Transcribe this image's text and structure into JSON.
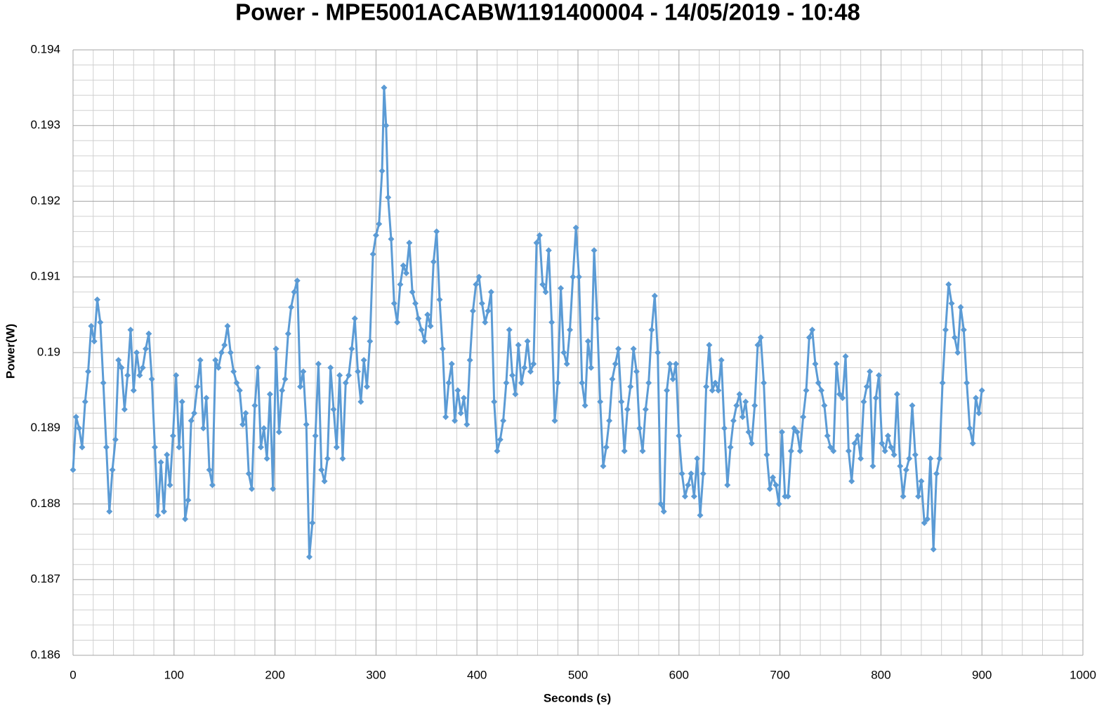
{
  "chart_data": {
    "type": "line",
    "title": "Power - MPE5001ACABW1191400004 - 14/05/2019 - 10:48",
    "x_label": "Seconds (s)",
    "y_label": "Power(W)",
    "xlim": [
      0,
      1000
    ],
    "xticks": [
      0,
      100,
      200,
      300,
      400,
      500,
      600,
      700,
      800,
      900,
      1000
    ],
    "ylim": [
      0.186,
      0.194
    ],
    "yticks": [
      0.186,
      0.187,
      0.188,
      0.189,
      0.19,
      0.191,
      0.192,
      0.193,
      0.194
    ],
    "grid": true,
    "minor_grid": true,
    "marker": "diamond",
    "x": [
      0,
      3,
      6,
      9,
      12,
      15,
      18,
      21,
      24,
      27,
      30,
      33,
      36,
      39,
      42,
      45,
      48,
      51,
      54,
      57,
      60,
      63,
      66,
      69,
      72,
      75,
      78,
      81,
      84,
      87,
      90,
      93,
      96,
      99,
      102,
      105,
      108,
      111,
      114,
      117,
      120,
      123,
      126,
      129,
      132,
      135,
      138,
      141,
      144,
      147,
      150,
      153,
      156,
      159,
      162,
      165,
      168,
      171,
      174,
      177,
      180,
      183,
      186,
      189,
      192,
      195,
      198,
      201,
      204,
      207,
      210,
      213,
      216,
      219,
      222,
      225,
      228,
      231,
      234,
      237,
      240,
      243,
      246,
      249,
      252,
      255,
      258,
      261,
      264,
      267,
      270,
      273,
      276,
      279,
      282,
      285,
      288,
      291,
      294,
      297,
      300,
      303,
      306,
      308,
      310,
      312,
      315,
      318,
      321,
      324,
      327,
      330,
      333,
      336,
      339,
      342,
      345,
      348,
      351,
      354,
      357,
      360,
      363,
      366,
      369,
      372,
      375,
      378,
      381,
      384,
      387,
      390,
      393,
      396,
      399,
      402,
      405,
      408,
      411,
      414,
      417,
      420,
      423,
      426,
      429,
      432,
      435,
      438,
      441,
      444,
      447,
      450,
      453,
      456,
      459,
      462,
      465,
      468,
      471,
      474,
      477,
      480,
      483,
      486,
      489,
      492,
      495,
      498,
      501,
      504,
      507,
      510,
      513,
      516,
      519,
      522,
      525,
      528,
      531,
      534,
      537,
      540,
      543,
      546,
      549,
      552,
      555,
      558,
      561,
      564,
      567,
      570,
      573,
      576,
      579,
      582,
      585,
      588,
      591,
      594,
      597,
      600,
      603,
      606,
      609,
      612,
      615,
      618,
      621,
      624,
      627,
      630,
      633,
      636,
      639,
      642,
      645,
      648,
      651,
      654,
      657,
      660,
      663,
      666,
      669,
      672,
      675,
      678,
      681,
      684,
      687,
      690,
      693,
      696,
      699,
      702,
      705,
      708,
      711,
      714,
      717,
      720,
      723,
      726,
      729,
      732,
      735,
      738,
      741,
      744,
      747,
      750,
      753,
      756,
      759,
      762,
      765,
      768,
      771,
      774,
      777,
      780,
      783,
      786,
      789,
      792,
      795,
      798,
      801,
      804,
      807,
      810,
      813,
      816,
      819,
      822,
      825,
      828,
      831,
      834,
      837,
      840,
      843,
      846,
      849,
      852,
      855,
      858,
      861,
      864,
      867,
      870,
      873,
      876,
      879,
      882,
      885,
      888,
      891,
      894,
      897,
      900
    ],
    "series": [
      {
        "name": "Power",
        "color": "#5b9bd5",
        "values": [
          0.18845,
          0.18915,
          0.189,
          0.18875,
          0.18935,
          0.18975,
          0.19035,
          0.19015,
          0.1907,
          0.1904,
          0.1896,
          0.18875,
          0.1879,
          0.18845,
          0.18885,
          0.1899,
          0.1898,
          0.18925,
          0.1897,
          0.1903,
          0.1895,
          0.19,
          0.1897,
          0.1898,
          0.19005,
          0.19025,
          0.18965,
          0.18875,
          0.18785,
          0.18855,
          0.1879,
          0.18865,
          0.18825,
          0.1889,
          0.1897,
          0.18875,
          0.18935,
          0.1878,
          0.18805,
          0.1891,
          0.1892,
          0.18955,
          0.1899,
          0.189,
          0.1894,
          0.18845,
          0.18825,
          0.1899,
          0.1898,
          0.19,
          0.1901,
          0.19035,
          0.19,
          0.18975,
          0.1896,
          0.1895,
          0.18905,
          0.1892,
          0.1884,
          0.1882,
          0.1893,
          0.1898,
          0.18875,
          0.189,
          0.1886,
          0.18945,
          0.1882,
          0.19005,
          0.18895,
          0.1895,
          0.18965,
          0.19025,
          0.1906,
          0.1908,
          0.19095,
          0.18955,
          0.18975,
          0.18905,
          0.1873,
          0.18775,
          0.1889,
          0.18985,
          0.18845,
          0.1883,
          0.1886,
          0.1898,
          0.18925,
          0.18875,
          0.1897,
          0.1886,
          0.1896,
          0.1897,
          0.19005,
          0.19045,
          0.18975,
          0.18935,
          0.1899,
          0.18955,
          0.19015,
          0.1913,
          0.19155,
          0.1917,
          0.1924,
          0.1935,
          0.193,
          0.19205,
          0.1915,
          0.19065,
          0.1904,
          0.1909,
          0.19115,
          0.19105,
          0.19145,
          0.1908,
          0.19065,
          0.19045,
          0.1903,
          0.19015,
          0.1905,
          0.19035,
          0.1912,
          0.1916,
          0.1907,
          0.19005,
          0.18915,
          0.1896,
          0.18985,
          0.1891,
          0.1895,
          0.1892,
          0.1894,
          0.18905,
          0.1899,
          0.19055,
          0.1909,
          0.191,
          0.19065,
          0.1904,
          0.19055,
          0.1908,
          0.18935,
          0.1887,
          0.18885,
          0.1891,
          0.1896,
          0.1903,
          0.1897,
          0.18945,
          0.1901,
          0.1896,
          0.1898,
          0.19015,
          0.18975,
          0.18985,
          0.19145,
          0.19155,
          0.1909,
          0.1908,
          0.19135,
          0.1904,
          0.1891,
          0.1896,
          0.19085,
          0.19,
          0.18985,
          0.1903,
          0.191,
          0.19165,
          0.191,
          0.1896,
          0.1893,
          0.19015,
          0.1898,
          0.19135,
          0.19045,
          0.18935,
          0.1885,
          0.18875,
          0.1891,
          0.18965,
          0.18985,
          0.19005,
          0.18935,
          0.1887,
          0.18925,
          0.18955,
          0.19005,
          0.18975,
          0.189,
          0.1887,
          0.18925,
          0.1896,
          0.1903,
          0.19075,
          0.19,
          0.188,
          0.1879,
          0.1895,
          0.18985,
          0.18965,
          0.18985,
          0.1889,
          0.1884,
          0.1881,
          0.18825,
          0.1884,
          0.1881,
          0.1886,
          0.18785,
          0.1884,
          0.18955,
          0.1901,
          0.1895,
          0.1896,
          0.1895,
          0.1899,
          0.189,
          0.18825,
          0.18875,
          0.1891,
          0.1893,
          0.18945,
          0.18915,
          0.18935,
          0.18895,
          0.1888,
          0.1893,
          0.1901,
          0.1902,
          0.1896,
          0.18865,
          0.1882,
          0.18835,
          0.18825,
          0.188,
          0.18895,
          0.1881,
          0.1881,
          0.1887,
          0.189,
          0.18895,
          0.1887,
          0.18915,
          0.1895,
          0.1902,
          0.1903,
          0.18985,
          0.1896,
          0.1895,
          0.1893,
          0.1889,
          0.18875,
          0.1887,
          0.18985,
          0.18945,
          0.1894,
          0.18995,
          0.1887,
          0.1883,
          0.1888,
          0.1889,
          0.1886,
          0.18935,
          0.18955,
          0.18975,
          0.1885,
          0.1894,
          0.1897,
          0.1888,
          0.1887,
          0.1889,
          0.18875,
          0.18865,
          0.18945,
          0.1885,
          0.1881,
          0.18845,
          0.1886,
          0.1893,
          0.18865,
          0.1881,
          0.1883,
          0.18775,
          0.1878,
          0.1886,
          0.1874,
          0.1884,
          0.1886,
          0.1896,
          0.1903,
          0.1909,
          0.19065,
          0.1902,
          0.19,
          0.1906,
          0.1903,
          0.1896,
          0.189,
          0.1888,
          0.1894,
          0.1892,
          0.1895
        ]
      }
    ]
  }
}
